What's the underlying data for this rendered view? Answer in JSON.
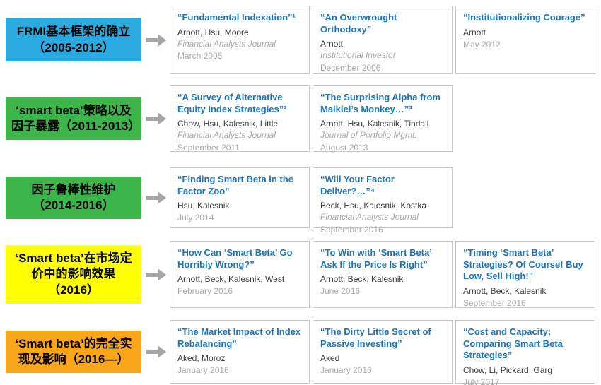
{
  "colors": {
    "phase_blue": "#29abe2",
    "phase_green": "#3cb54a",
    "phase_yellow": "#ffff00",
    "phase_orange": "#faa61a",
    "title_blue": "#1b75bc",
    "muted_gray": "#a9a9a9",
    "arrow_gray": "#a6a6a6"
  },
  "rows": [
    {
      "phase": {
        "label": "FRMI基本框架的确立（2005-2012）",
        "color": "#29abe2",
        "style": "background-color:#29abe2"
      },
      "cards": [
        {
          "title": "“Fundamental Indexation”¹",
          "authors": "Arnott, Hsu, Moore",
          "journal": "Financial Analysts Journal",
          "date": "March 2005"
        },
        {
          "title": "“An Overwrought Orthodoxy”",
          "authors": "Arnott",
          "journal": "Institutional Investor",
          "date": "December 2006"
        },
        {
          "title": "“Institutionalizing Courage”",
          "authors": "Arnott",
          "journal": "",
          "date": "May 2012"
        }
      ]
    },
    {
      "phase": {
        "label": "‘smart beta’策略以及因子暴露（2011-2013）",
        "color": "#3cb54a",
        "style": "background-color:#3cb54a"
      },
      "cards": [
        {
          "title": "“A Survey of Alternative Equity Index Strategies”²",
          "authors": "Chow, Hsu, Kalesnik, Little",
          "journal": "Financial Analysts Journal",
          "date": "September 2011"
        },
        {
          "title": "“The Surprising Alpha from Malkiel’s Monkey…”³",
          "authors": "Arnott, Hsu, Kalesnik, Tindall",
          "journal": "Journal of Portfolio Mgmt.",
          "date": "August 2013"
        }
      ]
    },
    {
      "phase": {
        "label": "因子鲁棒性维护（2014-2016）",
        "color": "#3cb54a",
        "style": "background-color:#3cb54a"
      },
      "cards": [
        {
          "title": "“Finding Smart Beta in the Factor Zoo”",
          "authors": "Hsu, Kalesnik",
          "journal": "",
          "date": "July 2014"
        },
        {
          "title": "“Will Your Factor Deliver?…”⁴",
          "authors": "Beck, Hsu, Kalesnik, Kostka",
          "journal": "Financial Analysts Journal",
          "date": "September 2016"
        }
      ]
    },
    {
      "phase": {
        "label": "‘Smart beta’在市场定价中的影响效果（2016）",
        "color": "#ffff00",
        "style": "background-color:#ffff00"
      },
      "cards": [
        {
          "title": "“How Can ‘Smart Beta’ Go Horribly Wrong?”",
          "authors": "Arnott, Beck, Kalesnik, West",
          "journal": "",
          "date": "February 2016"
        },
        {
          "title": "“To Win with ‘Smart Beta’ Ask If the Price Is Right”",
          "authors": "Arnott, Beck, Kalesnik",
          "journal": "",
          "date": "June 2016"
        },
        {
          "title": "“Timing ‘Smart Beta’ Strategies? Of Course! Buy Low, Sell High!”",
          "authors": "Arnott, Beck, Kalesnik",
          "journal": "",
          "date": "September 2016"
        }
      ]
    },
    {
      "phase": {
        "label": "‘Smart beta’的完全实现及影响（2016—）",
        "color": "#faa61a",
        "style": "background-color:#faa61a"
      },
      "cards": [
        {
          "title": "“The Market Impact of Index Rebalancing”",
          "authors": "Aked, Moroz",
          "journal": "",
          "date": "January 2016"
        },
        {
          "title": "“The Dirty Little Secret of Passive Investing”",
          "authors": "Aked",
          "journal": "",
          "date": "January 2016"
        },
        {
          "title": "“Cost and Capacity: Comparing Smart Beta Strategies”",
          "authors": "Chow, Li, Pickard, Garg",
          "journal": "",
          "date": "July 2017"
        }
      ]
    }
  ]
}
